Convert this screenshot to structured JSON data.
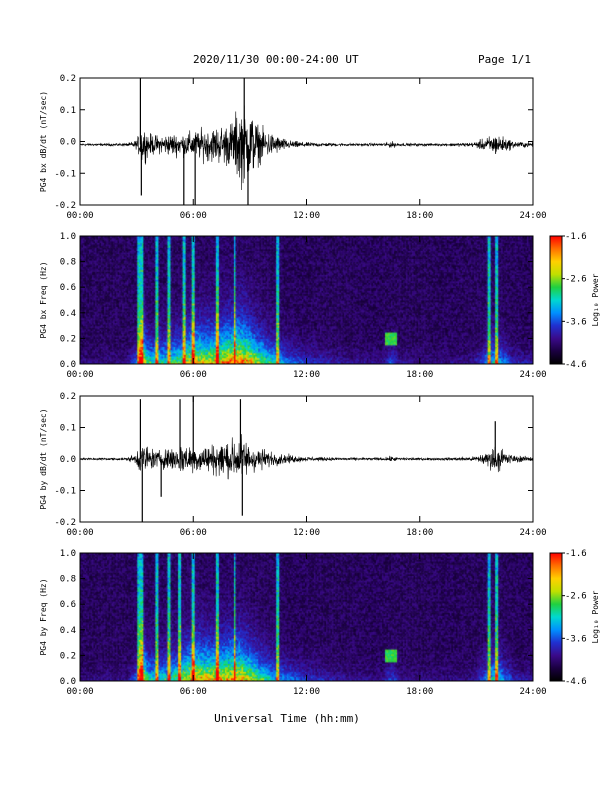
{
  "header": {
    "title": "2020/11/30  00:00-24:00 UT",
    "page": "Page 1/1"
  },
  "footer": {
    "xlabel": "Universal Time (hh:mm)"
  },
  "colors": {
    "trace": "#000000",
    "colormap": [
      "#000000",
      "#1a0040",
      "#3a0a8a",
      "#2030d0",
      "#0090ff",
      "#00d8d0",
      "#20d040",
      "#c0e000",
      "#ffd000",
      "#ff7000",
      "#ff0000"
    ]
  },
  "chart_data": [
    {
      "type": "line",
      "id": "bx-waveform",
      "ylabel": "PG4 bx dB/dt (nT/sec)",
      "xlim": [
        0,
        24
      ],
      "ylim": [
        -0.2,
        0.2
      ],
      "x_ticks": [
        "00:00",
        "06:00",
        "12:00",
        "18:00",
        "24:00"
      ],
      "y_ticks": [
        "-0.2",
        "-0.1",
        "0.0",
        "0.1",
        "0.2"
      ],
      "baseline": -0.01,
      "amplitude_envelope": {
        "x": [
          0,
          2.5,
          3.0,
          3.3,
          3.6,
          4.2,
          4.8,
          5.3,
          6.0,
          6.5,
          7.2,
          8.0,
          8.5,
          9.0,
          9.5,
          10.2,
          11.0,
          12.0,
          14.0,
          16.0,
          16.5,
          17.0,
          19.0,
          20.8,
          21.5,
          22.0,
          23.0,
          24.0
        ],
        "y": [
          0.005,
          0.006,
          0.02,
          0.09,
          0.05,
          0.04,
          0.05,
          0.05,
          0.06,
          0.07,
          0.08,
          0.1,
          0.18,
          0.16,
          0.08,
          0.05,
          0.02,
          0.01,
          0.006,
          0.006,
          0.015,
          0.006,
          0.005,
          0.01,
          0.03,
          0.05,
          0.015,
          0.01
        ]
      },
      "spikes": [
        {
          "x": 3.2,
          "y": 0.2
        },
        {
          "x": 3.25,
          "y": -0.17
        },
        {
          "x": 5.5,
          "y": -0.2
        },
        {
          "x": 6.1,
          "y": -0.2
        },
        {
          "x": 8.7,
          "y": 0.2
        },
        {
          "x": 8.9,
          "y": -0.2
        }
      ]
    },
    {
      "type": "heatmap",
      "id": "bx-spectrogram",
      "ylabel": "PG4 bx Freq (Hz)",
      "xlim": [
        0,
        24
      ],
      "ylim": [
        0,
        1.0
      ],
      "x_ticks": [
        "00:00",
        "06:00",
        "12:00",
        "18:00",
        "24:00"
      ],
      "y_ticks": [
        "0.0",
        "0.2",
        "0.4",
        "0.6",
        "0.8",
        "1.0"
      ],
      "colorbar": {
        "label": "Log₁₀ Power",
        "range": [
          -4.6,
          -1.6
        ],
        "ticks": [
          "-1.6",
          "-2.6",
          "-3.6",
          "-4.6"
        ]
      },
      "activity": {
        "x": [
          0,
          2.5,
          3.0,
          3.3,
          3.6,
          4.2,
          4.8,
          5.3,
          6.0,
          6.5,
          7.2,
          8.0,
          8.5,
          9.0,
          9.5,
          10.2,
          11.0,
          12.0,
          14.0,
          16.0,
          16.5,
          17.0,
          19.0,
          20.8,
          21.5,
          22.0,
          23.0,
          24.0
        ],
        "intensity": [
          0.05,
          0.07,
          0.3,
          0.8,
          0.5,
          0.45,
          0.5,
          0.55,
          0.75,
          0.7,
          0.75,
          0.85,
          0.9,
          0.8,
          0.6,
          0.45,
          0.3,
          0.2,
          0.1,
          0.08,
          0.25,
          0.08,
          0.06,
          0.08,
          0.3,
          0.45,
          0.15,
          0.1
        ]
      },
      "vertical_streaks": [
        3.1,
        3.3,
        4.1,
        4.7,
        5.5,
        6.0,
        7.3,
        8.2,
        10.5,
        21.7,
        22.1
      ],
      "patch": {
        "x": [
          16.2,
          16.8
        ],
        "freq": [
          0.15,
          0.25
        ]
      }
    },
    {
      "type": "line",
      "id": "by-waveform",
      "ylabel": "PG4 by dB/dt (nT/sec)",
      "xlim": [
        0,
        24
      ],
      "ylim": [
        -0.2,
        0.2
      ],
      "x_ticks": [
        "00:00",
        "06:00",
        "12:00",
        "18:00",
        "24:00"
      ],
      "y_ticks": [
        "-0.2",
        "-0.1",
        "0.0",
        "0.1",
        "0.2"
      ],
      "baseline": 0.0,
      "amplitude_envelope": {
        "x": [
          0,
          2.5,
          3.0,
          3.3,
          3.6,
          4.2,
          4.8,
          5.3,
          6.0,
          6.5,
          7.2,
          8.0,
          8.5,
          9.0,
          9.5,
          10.2,
          11.0,
          12.0,
          14.0,
          16.0,
          16.5,
          17.0,
          19.0,
          20.8,
          21.5,
          22.0,
          23.0,
          24.0
        ],
        "y": [
          0.005,
          0.006,
          0.03,
          0.09,
          0.05,
          0.04,
          0.05,
          0.07,
          0.06,
          0.06,
          0.07,
          0.09,
          0.1,
          0.07,
          0.05,
          0.03,
          0.02,
          0.01,
          0.006,
          0.006,
          0.012,
          0.006,
          0.005,
          0.01,
          0.03,
          0.06,
          0.015,
          0.01
        ]
      },
      "spikes": [
        {
          "x": 3.2,
          "y": 0.19
        },
        {
          "x": 3.3,
          "y": -0.2
        },
        {
          "x": 5.3,
          "y": 0.19
        },
        {
          "x": 6.0,
          "y": 0.2
        },
        {
          "x": 4.3,
          "y": -0.12
        },
        {
          "x": 8.5,
          "y": 0.19
        },
        {
          "x": 8.6,
          "y": -0.18
        },
        {
          "x": 22.0,
          "y": 0.12
        }
      ]
    },
    {
      "type": "heatmap",
      "id": "by-spectrogram",
      "ylabel": "PG4 by Freq (Hz)",
      "xlim": [
        0,
        24
      ],
      "ylim": [
        0,
        1.0
      ],
      "x_ticks": [
        "00:00",
        "06:00",
        "12:00",
        "18:00",
        "24:00"
      ],
      "y_ticks": [
        "0.0",
        "0.2",
        "0.4",
        "0.6",
        "0.8",
        "1.0"
      ],
      "colorbar": {
        "label": "Log₁₀ Power",
        "range": [
          -4.6,
          -1.6
        ],
        "ticks": [
          "-1.6",
          "-2.6",
          "-3.6",
          "-4.6"
        ]
      },
      "activity": {
        "x": [
          0,
          2.5,
          3.0,
          3.3,
          3.6,
          4.2,
          4.8,
          5.3,
          6.0,
          6.5,
          7.2,
          8.0,
          8.5,
          9.0,
          9.5,
          10.2,
          11.0,
          12.0,
          14.0,
          16.0,
          16.5,
          17.0,
          19.0,
          20.8,
          21.5,
          22.0,
          23.0,
          24.0
        ],
        "intensity": [
          0.05,
          0.07,
          0.3,
          0.8,
          0.5,
          0.45,
          0.5,
          0.6,
          0.8,
          0.75,
          0.75,
          0.8,
          0.8,
          0.7,
          0.55,
          0.4,
          0.3,
          0.2,
          0.1,
          0.08,
          0.25,
          0.08,
          0.06,
          0.08,
          0.3,
          0.5,
          0.15,
          0.1
        ]
      },
      "vertical_streaks": [
        3.1,
        3.3,
        4.1,
        4.7,
        5.3,
        6.0,
        7.3,
        8.2,
        10.5,
        21.7,
        22.1
      ],
      "patch": {
        "x": [
          16.2,
          16.8
        ],
        "freq": [
          0.15,
          0.25
        ]
      }
    }
  ]
}
